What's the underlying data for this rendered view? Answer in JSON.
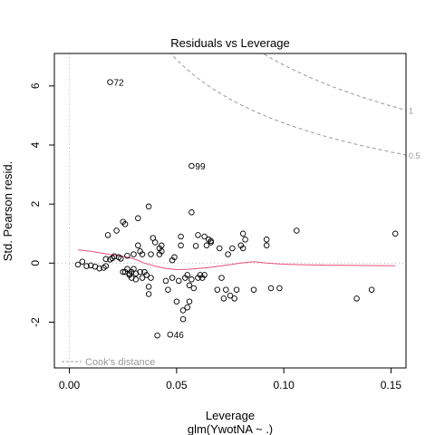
{
  "chart_data": {
    "type": "scatter",
    "title": "Residuals vs Leverage",
    "xlabel": "Leverage",
    "xsublabel": "glm(YwotNA ~ .)",
    "ylabel": "Std. Pearson resid.",
    "xlim": [
      -0.007,
      0.157
    ],
    "ylim": [
      -3.55,
      7.1
    ],
    "xticks": [
      {
        "value": 0.0,
        "label": "0.00"
      },
      {
        "value": 0.05,
        "label": "0.05"
      },
      {
        "value": 0.1,
        "label": "0.10"
      },
      {
        "value": 0.15,
        "label": "0.15"
      }
    ],
    "yticks": [
      {
        "value": -2,
        "label": "-2"
      },
      {
        "value": 0,
        "label": "0"
      },
      {
        "value": 2,
        "label": "2"
      },
      {
        "value": 4,
        "label": "4"
      },
      {
        "value": 6,
        "label": "6"
      }
    ],
    "legend": {
      "label": "Cook's distance",
      "position": "bottom-left"
    },
    "cook_contours": [
      {
        "level": 1,
        "label": "1"
      },
      {
        "level": 0.5,
        "label": "0.5"
      }
    ],
    "labeled_points": [
      {
        "label": "72",
        "x": 0.019,
        "y": 6.13
      },
      {
        "label": "99",
        "x": 0.057,
        "y": 3.29
      },
      {
        "label": "46",
        "x": 0.047,
        "y": -2.42
      }
    ],
    "points": [
      [
        0.019,
        6.13
      ],
      [
        0.057,
        3.29
      ],
      [
        0.047,
        -2.42
      ],
      [
        0.004,
        -0.05
      ],
      [
        0.006,
        0.05
      ],
      [
        0.008,
        -0.1
      ],
      [
        0.01,
        -0.08
      ],
      [
        0.012,
        -0.12
      ],
      [
        0.014,
        -0.18
      ],
      [
        0.016,
        -0.16
      ],
      [
        0.017,
        0.14
      ],
      [
        0.017,
        -0.1
      ],
      [
        0.018,
        0.95
      ],
      [
        0.019,
        0.12
      ],
      [
        0.02,
        0.17
      ],
      [
        0.021,
        0.23
      ],
      [
        0.022,
        1.1
      ],
      [
        0.023,
        0.2
      ],
      [
        0.024,
        0.15
      ],
      [
        0.025,
        -0.3
      ],
      [
        0.025,
        1.4
      ],
      [
        0.026,
        1.32
      ],
      [
        0.026,
        -0.3
      ],
      [
        0.027,
        -0.2
      ],
      [
        0.027,
        0.25
      ],
      [
        0.028,
        -0.4
      ],
      [
        0.028,
        -0.35
      ],
      [
        0.029,
        -0.5
      ],
      [
        0.029,
        -0.3
      ],
      [
        0.03,
        -0.2
      ],
      [
        0.03,
        0.3
      ],
      [
        0.031,
        -0.35
      ],
      [
        0.031,
        -0.55
      ],
      [
        0.032,
        1.52
      ],
      [
        0.032,
        0.6
      ],
      [
        0.033,
        0.4
      ],
      [
        0.033,
        -0.3
      ],
      [
        0.034,
        -0.5
      ],
      [
        0.034,
        0.3
      ],
      [
        0.035,
        -0.3
      ],
      [
        0.036,
        -0.4
      ],
      [
        0.037,
        -0.8
      ],
      [
        0.037,
        -1.05
      ],
      [
        0.037,
        1.92
      ],
      [
        0.038,
        0.3
      ],
      [
        0.038,
        -0.5
      ],
      [
        0.039,
        0.85
      ],
      [
        0.04,
        0.7
      ],
      [
        0.041,
        -2.45
      ],
      [
        0.042,
        0.5
      ],
      [
        0.042,
        0.3
      ],
      [
        0.043,
        0.6
      ],
      [
        0.043,
        0.4
      ],
      [
        0.045,
        -0.6
      ],
      [
        0.046,
        -0.9
      ],
      [
        0.048,
        0.1
      ],
      [
        0.048,
        -0.5
      ],
      [
        0.049,
        0.2
      ],
      [
        0.05,
        -1.3
      ],
      [
        0.051,
        -0.6
      ],
      [
        0.052,
        0.6
      ],
      [
        0.052,
        0.9
      ],
      [
        0.053,
        -1.6
      ],
      [
        0.053,
        -1.9
      ],
      [
        0.054,
        -0.5
      ],
      [
        0.055,
        -0.4
      ],
      [
        0.055,
        -1.5
      ],
      [
        0.056,
        -1.3
      ],
      [
        0.056,
        -0.75
      ],
      [
        0.057,
        1.72
      ],
      [
        0.057,
        -0.55
      ],
      [
        0.058,
        -0.85
      ],
      [
        0.059,
        0.58
      ],
      [
        0.06,
        -0.5
      ],
      [
        0.06,
        0.95
      ],
      [
        0.061,
        -0.4
      ],
      [
        0.062,
        -0.5
      ],
      [
        0.063,
        0.9
      ],
      [
        0.063,
        -0.4
      ],
      [
        0.064,
        0.6
      ],
      [
        0.065,
        0.8
      ],
      [
        0.066,
        0.7
      ],
      [
        0.066,
        0.75
      ],
      [
        0.069,
        -0.9
      ],
      [
        0.07,
        0.5
      ],
      [
        0.071,
        -0.5
      ],
      [
        0.072,
        -1.2
      ],
      [
        0.073,
        -0.9
      ],
      [
        0.074,
        0.3
      ],
      [
        0.075,
        -1.1
      ],
      [
        0.076,
        0.5
      ],
      [
        0.077,
        -1.2
      ],
      [
        0.078,
        -0.9
      ],
      [
        0.08,
        0.6
      ],
      [
        0.081,
        1.0
      ],
      [
        0.081,
        0.5
      ],
      [
        0.082,
        0.8
      ],
      [
        0.086,
        -0.9
      ],
      [
        0.092,
        0.8
      ],
      [
        0.092,
        0.6
      ],
      [
        0.094,
        -0.85
      ],
      [
        0.098,
        -0.85
      ],
      [
        0.106,
        1.1
      ],
      [
        0.134,
        -1.2
      ],
      [
        0.141,
        -0.9
      ],
      [
        0.152,
        1.0
      ]
    ],
    "smoother": [
      [
        0.004,
        0.45
      ],
      [
        0.01,
        0.4
      ],
      [
        0.015,
        0.34
      ],
      [
        0.02,
        0.28
      ],
      [
        0.025,
        0.23
      ],
      [
        0.03,
        0.15
      ],
      [
        0.035,
        0.0
      ],
      [
        0.04,
        -0.1
      ],
      [
        0.045,
        -0.18
      ],
      [
        0.05,
        -0.22
      ],
      [
        0.055,
        -0.21
      ],
      [
        0.06,
        -0.18
      ],
      [
        0.065,
        -0.15
      ],
      [
        0.07,
        -0.1
      ],
      [
        0.075,
        -0.05
      ],
      [
        0.08,
        0.0
      ],
      [
        0.086,
        0.05
      ],
      [
        0.092,
        0.0
      ],
      [
        0.098,
        -0.03
      ],
      [
        0.106,
        -0.05
      ],
      [
        0.12,
        -0.07
      ],
      [
        0.134,
        -0.08
      ],
      [
        0.152,
        -0.09
      ]
    ],
    "n_params": 5,
    "grid": false
  }
}
